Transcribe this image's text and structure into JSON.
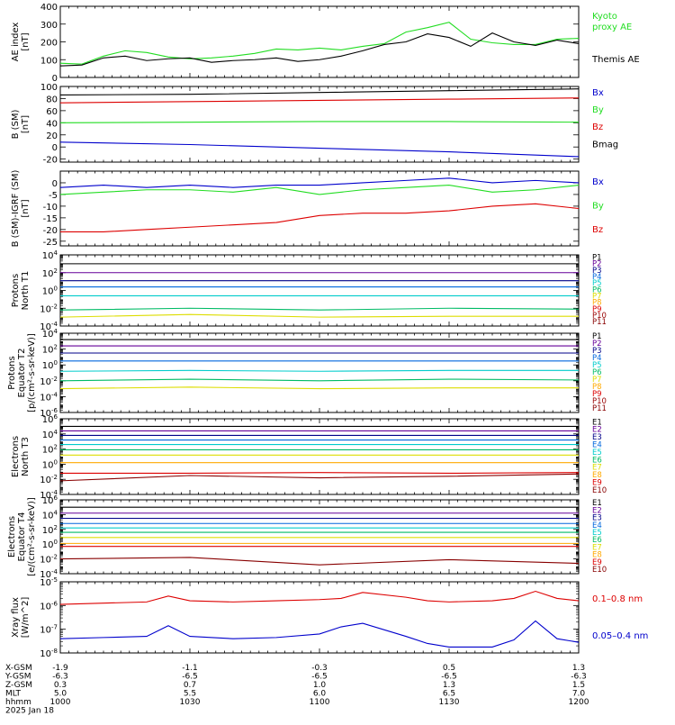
{
  "colors": {
    "black": "#000000",
    "red": "#dd0000",
    "green": "#22dd22",
    "blue": "#0000cc",
    "purple": "#660099",
    "navy": "#000088",
    "royal": "#0066dd",
    "cyan": "#00cccc",
    "sea": "#00bb66",
    "yellow": "#dddd00",
    "orange": "#ffaa00",
    "darkred": "#990000",
    "maroon": "#880000"
  },
  "time_axis": {
    "rows": [
      {
        "label": "X-GSM",
        "values": [
          "-1.9",
          "-1.1",
          "-0.3",
          "0.5",
          "1.3"
        ]
      },
      {
        "label": "Y-GSM",
        "values": [
          "-6.3",
          "-6.5",
          "-6.5",
          "-6.5",
          "-6.3"
        ]
      },
      {
        "label": "Z-GSM",
        "values": [
          "0.3",
          "0.7",
          "1.0",
          "1.3",
          "1.5"
        ]
      },
      {
        "label": "MLT",
        "values": [
          "5.0",
          "5.5",
          "6.0",
          "6.5",
          "7.0"
        ]
      },
      {
        "label": "hhmm",
        "values": [
          "1000",
          "1030",
          "1100",
          "1130",
          "1200"
        ]
      }
    ],
    "date": "2025 Jan 18"
  },
  "chart_data": [
    {
      "id": "ae",
      "type": "line",
      "ylabel": [
        "AE index",
        "[nT]"
      ],
      "ylim": [
        0,
        400
      ],
      "yscale": "linear",
      "yticks": [
        "0",
        "100",
        "200",
        "300",
        "400"
      ],
      "x": [
        0,
        5,
        10,
        15,
        20,
        25,
        30,
        35,
        40,
        45,
        50,
        55,
        60,
        65,
        70,
        75,
        80,
        85,
        90,
        95,
        100,
        105,
        110,
        115,
        120
      ],
      "series": [
        {
          "name": "Kyoto proxy AE",
          "color": "green",
          "legend_lines": [
            "Kyoto",
            "proxy AE"
          ],
          "values": [
            80,
            75,
            120,
            150,
            140,
            115,
            105,
            110,
            120,
            135,
            160,
            155,
            165,
            155,
            175,
            190,
            255,
            280,
            310,
            215,
            195,
            185,
            185,
            215,
            220
          ]
        },
        {
          "name": "Themis AE",
          "color": "black",
          "legend_lines": [
            "Themis AE"
          ],
          "values": [
            65,
            70,
            110,
            120,
            95,
            105,
            110,
            85,
            95,
            100,
            110,
            90,
            100,
            120,
            150,
            185,
            200,
            245,
            225,
            175,
            250,
            200,
            180,
            210,
            190
          ]
        }
      ]
    },
    {
      "id": "bsm",
      "type": "line",
      "ylabel": [
        "B (SM)",
        "[nT]"
      ],
      "ylim": [
        -25,
        100
      ],
      "yscale": "linear",
      "yticks": [
        "-20",
        "0",
        "20",
        "40",
        "60",
        "80",
        "100"
      ],
      "x": [
        0,
        30,
        60,
        90,
        120
      ],
      "series": [
        {
          "name": "Bx",
          "color": "blue",
          "values": [
            8,
            4,
            -2,
            -8,
            -16
          ]
        },
        {
          "name": "By",
          "color": "green",
          "values": [
            40,
            41,
            42,
            42,
            41
          ]
        },
        {
          "name": "Bz",
          "color": "red",
          "values": [
            73,
            75,
            77,
            79,
            81
          ]
        },
        {
          "name": "Bmag",
          "color": "black",
          "values": [
            86,
            87,
            90,
            93,
            96
          ]
        }
      ]
    },
    {
      "id": "bigrf",
      "type": "line",
      "ylabel": [
        "B (SM)-IGRF (SM)",
        "[nT]"
      ],
      "ylim": [
        -27,
        5
      ],
      "yscale": "linear",
      "yticks": [
        "-25",
        "-20",
        "-15",
        "-10",
        "-5",
        "0"
      ],
      "x": [
        0,
        10,
        20,
        30,
        40,
        50,
        60,
        70,
        80,
        90,
        100,
        110,
        120
      ],
      "series": [
        {
          "name": "Bx",
          "color": "blue",
          "values": [
            -2,
            -1,
            -2,
            -1,
            -2,
            -1,
            -1,
            0,
            1,
            2,
            0,
            1,
            0
          ]
        },
        {
          "name": "By",
          "color": "green",
          "values": [
            -5,
            -4,
            -3,
            -3,
            -4,
            -2,
            -5,
            -3,
            -2,
            -1,
            -4,
            -3,
            -1
          ]
        },
        {
          "name": "Bz",
          "color": "red",
          "values": [
            -21,
            -21,
            -20,
            -19,
            -18,
            -17,
            -14,
            -13,
            -13,
            -12,
            -10,
            -9,
            -11
          ]
        }
      ]
    },
    {
      "id": "pn",
      "type": "line",
      "ylabel": [
        "Protons",
        "North T1"
      ],
      "ylim": [
        -4,
        4
      ],
      "yscale": "log",
      "yticks": [
        "10^-4",
        "10^-2",
        "10^0",
        "10^2",
        "10^4"
      ],
      "channels": [
        "P1",
        "P2",
        "P3",
        "P4",
        "P5",
        "P6",
        "P7",
        "P8",
        "P9",
        "P10",
        "P11"
      ],
      "channel_colors": [
        "black",
        "purple",
        "navy",
        "royal",
        "cyan",
        "sea",
        "yellow",
        "orange",
        "red",
        "darkred",
        "maroon"
      ],
      "x": [
        0,
        30,
        60,
        90,
        120
      ],
      "series": [
        {
          "name": "P1",
          "color": "black",
          "values": [
            3.0,
            3.0,
            3.0,
            3.0,
            3.0
          ]
        },
        {
          "name": "P2",
          "color": "purple",
          "values": [
            2.0,
            2.0,
            2.0,
            2.0,
            2.0
          ]
        },
        {
          "name": "P3",
          "color": "navy",
          "values": [
            1.1,
            1.1,
            1.1,
            1.1,
            1.1
          ]
        },
        {
          "name": "P4",
          "color": "royal",
          "values": [
            0.4,
            0.4,
            0.4,
            0.4,
            0.4
          ]
        },
        {
          "name": "P5",
          "color": "cyan",
          "values": [
            -0.6,
            -0.6,
            -0.6,
            -0.6,
            -0.6
          ]
        },
        {
          "name": "P6",
          "color": "sea",
          "values": [
            -2.2,
            -2.0,
            -2.2,
            -2.0,
            -2.1
          ]
        },
        {
          "name": "P7",
          "color": "yellow",
          "values": [
            -3.0,
            -2.7,
            -3.0,
            -2.9,
            -2.9
          ]
        }
      ]
    },
    {
      "id": "pe",
      "type": "line",
      "ylabel": [
        "Protons",
        "Equator T2",
        "[p/(cm²-s-sr-keV)]"
      ],
      "ylim": [
        -6,
        4
      ],
      "yscale": "log",
      "yticks": [
        "10^-6",
        "10^-4",
        "10^-2",
        "10^0",
        "10^2",
        "10^4"
      ],
      "channels": [
        "P1",
        "P2",
        "P3",
        "P4",
        "P5",
        "P6",
        "P7",
        "P8",
        "P9",
        "P10",
        "P11"
      ],
      "channel_colors": [
        "black",
        "purple",
        "navy",
        "royal",
        "cyan",
        "sea",
        "yellow",
        "orange",
        "red",
        "darkred",
        "maroon"
      ],
      "x": [
        0,
        30,
        60,
        90,
        120
      ],
      "series": [
        {
          "name": "P1",
          "color": "black",
          "values": [
            3.2,
            3.2,
            3.2,
            3.2,
            3.2
          ]
        },
        {
          "name": "P2",
          "color": "purple",
          "values": [
            2.4,
            2.4,
            2.4,
            2.4,
            2.4
          ]
        },
        {
          "name": "P3",
          "color": "navy",
          "values": [
            1.5,
            1.5,
            1.5,
            1.5,
            1.5
          ]
        },
        {
          "name": "P4",
          "color": "royal",
          "values": [
            0.5,
            0.5,
            0.5,
            0.5,
            0.5
          ]
        },
        {
          "name": "P5",
          "color": "cyan",
          "values": [
            -0.8,
            -0.7,
            -0.8,
            -0.7,
            -0.7
          ]
        },
        {
          "name": "P6",
          "color": "sea",
          "values": [
            -2.0,
            -1.8,
            -2.0,
            -1.8,
            -1.9
          ]
        },
        {
          "name": "P7",
          "color": "yellow",
          "values": [
            -3.0,
            -2.8,
            -3.0,
            -2.9,
            -2.9
          ]
        }
      ]
    },
    {
      "id": "en",
      "type": "line",
      "ylabel": [
        "Electrons",
        "North T3"
      ],
      "ylim": [
        -4,
        6
      ],
      "yscale": "log",
      "yticks": [
        "10^-4",
        "10^-2",
        "10^0",
        "10^2",
        "10^4",
        "10^6"
      ],
      "channels": [
        "E1",
        "E2",
        "E3",
        "E4",
        "E5",
        "E6",
        "E7",
        "E8",
        "E9",
        "E10"
      ],
      "channel_colors": [
        "black",
        "purple",
        "navy",
        "royal",
        "cyan",
        "sea",
        "yellow",
        "orange",
        "red",
        "maroon"
      ],
      "x": [
        0,
        30,
        60,
        90,
        120
      ],
      "series": [
        {
          "name": "E1",
          "color": "black",
          "values": [
            5.0,
            5.0,
            5.0,
            5.0,
            5.0
          ]
        },
        {
          "name": "E2",
          "color": "purple",
          "values": [
            4.4,
            4.4,
            4.4,
            4.4,
            4.4
          ]
        },
        {
          "name": "E3",
          "color": "navy",
          "values": [
            3.8,
            3.8,
            3.8,
            3.8,
            3.8
          ]
        },
        {
          "name": "E4",
          "color": "royal",
          "values": [
            3.2,
            3.2,
            3.2,
            3.2,
            3.2
          ]
        },
        {
          "name": "E5",
          "color": "cyan",
          "values": [
            2.6,
            2.6,
            2.6,
            2.6,
            2.6
          ]
        },
        {
          "name": "E6",
          "color": "sea",
          "values": [
            1.9,
            1.9,
            1.9,
            1.9,
            1.9
          ]
        },
        {
          "name": "E7",
          "color": "yellow",
          "values": [
            1.2,
            1.2,
            1.2,
            1.2,
            1.2
          ]
        },
        {
          "name": "E8",
          "color": "orange",
          "values": [
            0.2,
            0.2,
            0.2,
            0.2,
            0.2
          ]
        },
        {
          "name": "E9",
          "color": "red",
          "values": [
            -1.2,
            -1.2,
            -1.1,
            -1.2,
            -1.1
          ]
        },
        {
          "name": "E10",
          "color": "maroon",
          "values": [
            -2.2,
            -1.5,
            -1.8,
            -1.6,
            -1.3
          ]
        }
      ]
    },
    {
      "id": "ee",
      "type": "line",
      "ylabel": [
        "Electrons",
        "Equator T4",
        "[e/(cm²-s-sr-keV)]"
      ],
      "ylim": [
        -4,
        6
      ],
      "yscale": "log",
      "yticks": [
        "10^-4",
        "10^-2",
        "10^0",
        "10^2",
        "10^4",
        "10^6"
      ],
      "channels": [
        "E1",
        "E2",
        "E3",
        "E4",
        "E5",
        "E6",
        "E7",
        "E8",
        "E9",
        "E10"
      ],
      "channel_colors": [
        "black",
        "purple",
        "navy",
        "royal",
        "cyan",
        "sea",
        "yellow",
        "orange",
        "red",
        "maroon"
      ],
      "x": [
        0,
        30,
        60,
        90,
        120
      ],
      "series": [
        {
          "name": "E1",
          "color": "black",
          "values": [
            5.0,
            5.0,
            5.0,
            5.0,
            5.0
          ]
        },
        {
          "name": "E2",
          "color": "purple",
          "values": [
            4.2,
            4.2,
            4.2,
            4.2,
            4.2
          ]
        },
        {
          "name": "E3",
          "color": "navy",
          "values": [
            3.5,
            3.5,
            3.5,
            3.5,
            3.5
          ]
        },
        {
          "name": "E4",
          "color": "royal",
          "values": [
            2.8,
            2.8,
            2.8,
            2.8,
            2.8
          ]
        },
        {
          "name": "E5",
          "color": "cyan",
          "values": [
            2.2,
            2.2,
            2.2,
            2.2,
            2.2
          ]
        },
        {
          "name": "E6",
          "color": "sea",
          "values": [
            1.6,
            1.6,
            1.6,
            1.6,
            1.6
          ]
        },
        {
          "name": "E7",
          "color": "yellow",
          "values": [
            0.9,
            0.9,
            0.9,
            0.9,
            0.9
          ]
        },
        {
          "name": "E8",
          "color": "orange",
          "values": [
            0.1,
            0.1,
            0.1,
            0.1,
            0.1
          ]
        },
        {
          "name": "E9",
          "color": "red",
          "values": [
            -0.3,
            -0.3,
            -0.3,
            -0.3,
            -0.3
          ]
        },
        {
          "name": "E10",
          "color": "maroon",
          "values": [
            -2.0,
            -1.8,
            -2.8,
            -2.1,
            -2.6
          ]
        }
      ]
    },
    {
      "id": "xray",
      "type": "line",
      "ylabel": [
        "Xray flux",
        "[W/m^2]"
      ],
      "ylim": [
        -8,
        -5
      ],
      "yscale": "log",
      "yticks": [
        "10^-8",
        "10^-7",
        "10^-6",
        "10^-5"
      ],
      "x": [
        0,
        10,
        20,
        25,
        30,
        40,
        50,
        60,
        65,
        70,
        80,
        85,
        90,
        100,
        105,
        110,
        115,
        120
      ],
      "series": [
        {
          "name": "0.1-0.8 nm",
          "color": "red",
          "legend_text": "0.1–0.8 nm",
          "values": [
            -5.95,
            -5.9,
            -5.85,
            -5.6,
            -5.8,
            -5.85,
            -5.8,
            -5.75,
            -5.7,
            -5.45,
            -5.65,
            -5.8,
            -5.85,
            -5.8,
            -5.7,
            -5.4,
            -5.7,
            -5.8
          ]
        },
        {
          "name": "0.05-0.4 nm",
          "color": "blue",
          "legend_text": "0.05–0.4 nm",
          "values": [
            -7.4,
            -7.35,
            -7.3,
            -6.85,
            -7.3,
            -7.4,
            -7.35,
            -7.2,
            -6.9,
            -6.75,
            -7.3,
            -7.6,
            -7.75,
            -7.75,
            -7.45,
            -6.65,
            -7.4,
            -7.55
          ]
        }
      ]
    }
  ]
}
